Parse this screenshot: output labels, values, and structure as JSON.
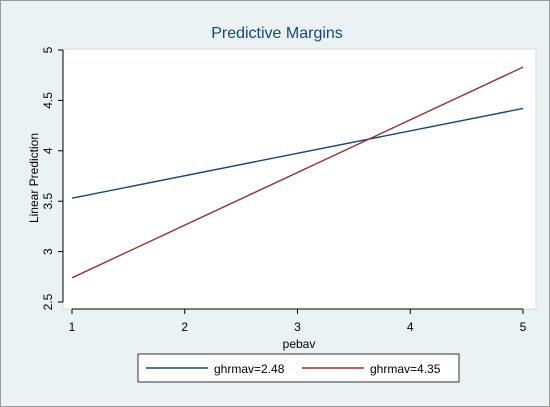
{
  "chart_data": {
    "type": "line",
    "title": "Predictive Margins",
    "xlabel": "pebav",
    "ylabel": "Linear Prediction",
    "x": [
      1,
      5
    ],
    "xticks": [
      1,
      2,
      3,
      4,
      5
    ],
    "yticks": [
      2.5,
      3,
      3.5,
      4,
      4.5,
      5
    ],
    "ytick_labels": [
      "2.5",
      "3",
      "3.5",
      "4",
      "4.5",
      "5"
    ],
    "xlim": [
      1,
      5
    ],
    "ylim": [
      2.5,
      5
    ],
    "grid": false,
    "legend_position": "bottom",
    "series": [
      {
        "name": "ghrmav=2.48",
        "values": [
          3.53,
          4.42
        ],
        "color": "#1a476f"
      },
      {
        "name": "ghrmav=4.35",
        "values": [
          2.74,
          4.83
        ],
        "color": "#90353b"
      }
    ]
  },
  "colors": {
    "background": "#eaf2f3",
    "plot_area": "#ffffff",
    "title": "#1a476f"
  }
}
